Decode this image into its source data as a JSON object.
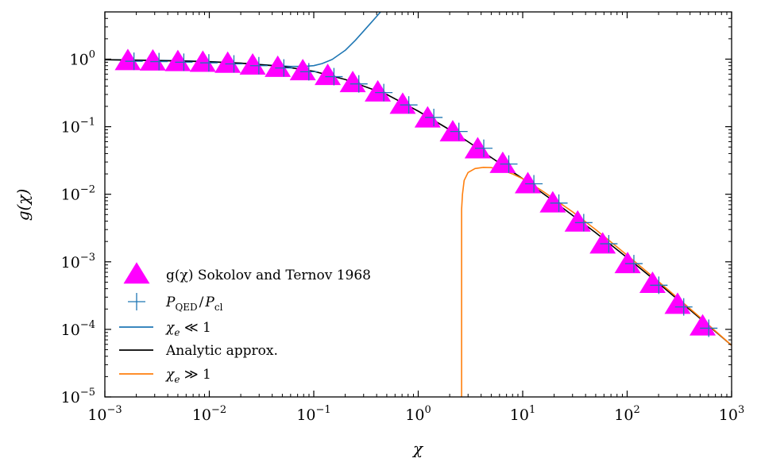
{
  "chart_data": {
    "type": "line",
    "xlabel": "χ",
    "ylabel": "g(χ)",
    "xscale": "log",
    "yscale": "log",
    "xlim": [
      0.001,
      1000
    ],
    "ylim": [
      1e-05,
      5
    ],
    "x_ticks": [
      {
        "base": "10",
        "exp": "−3",
        "value": 0.001
      },
      {
        "base": "10",
        "exp": "−2",
        "value": 0.01
      },
      {
        "base": "10",
        "exp": "−1",
        "value": 0.1
      },
      {
        "base": "10",
        "exp": "0",
        "value": 1
      },
      {
        "base": "10",
        "exp": "1",
        "value": 10
      },
      {
        "base": "10",
        "exp": "2",
        "value": 100
      },
      {
        "base": "10",
        "exp": "3",
        "value": 1000
      }
    ],
    "y_ticks": [
      {
        "base": "10",
        "exp": "−5",
        "value": 1e-05
      },
      {
        "base": "10",
        "exp": "−4",
        "value": 0.0001
      },
      {
        "base": "10",
        "exp": "−3",
        "value": 0.001
      },
      {
        "base": "10",
        "exp": "−2",
        "value": 0.01
      },
      {
        "base": "10",
        "exp": "−1",
        "value": 0.1
      },
      {
        "base": "10",
        "exp": "0",
        "value": 1
      }
    ],
    "legend_position": "bottom-left",
    "series": [
      {
        "name": "g(χ) Sokolov and Ternov 1968",
        "kind": "marker-triangle",
        "color": "#ff00ff",
        "x": [
          0.00166,
          0.00288,
          0.005,
          0.00867,
          0.015,
          0.026,
          0.0452,
          0.0785,
          0.136,
          0.236,
          0.41,
          0.71,
          1.23,
          2.14,
          3.71,
          6.44,
          11.2,
          19.4,
          33.6,
          58.3,
          101,
          175,
          304,
          528
        ],
        "y": [
          0.93,
          0.92,
          0.9,
          0.88,
          0.85,
          0.8,
          0.74,
          0.66,
          0.56,
          0.44,
          0.32,
          0.21,
          0.132,
          0.082,
          0.046,
          0.028,
          0.014,
          0.0073,
          0.0038,
          0.0018,
          0.00092,
          0.00047,
          0.00023,
          0.00011
        ]
      },
      {
        "name": "P_QED / P_cl",
        "kind": "marker-plus",
        "color": "#1f77b4",
        "x": [
          0.0019,
          0.0033,
          0.0057,
          0.0099,
          0.0172,
          0.0298,
          0.0517,
          0.0897,
          0.156,
          0.27,
          0.468,
          0.812,
          1.41,
          2.45,
          4.24,
          7.36,
          12.8,
          22.2,
          38.4,
          66.7,
          116,
          201,
          348,
          604
        ],
        "y": [
          0.93,
          0.92,
          0.9,
          0.88,
          0.85,
          0.8,
          0.74,
          0.65,
          0.55,
          0.43,
          0.32,
          0.21,
          0.137,
          0.085,
          0.048,
          0.028,
          0.0143,
          0.0074,
          0.0038,
          0.00185,
          0.00094,
          0.00045,
          0.000215,
          0.000104
        ]
      },
      {
        "name": "χe ≪ 1",
        "kind": "line",
        "color": "#1f77b4",
        "x": [
          0.001,
          0.005,
          0.01,
          0.02,
          0.04,
          0.06,
          0.08,
          0.1,
          0.12,
          0.15,
          0.2,
          0.25,
          0.3,
          0.35,
          0.4,
          0.45
        ],
        "y": [
          0.98,
          0.95,
          0.92,
          0.87,
          0.81,
          0.78,
          0.78,
          0.8,
          0.86,
          0.99,
          1.35,
          1.9,
          2.6,
          3.4,
          4.3,
          5.3
        ]
      },
      {
        "name": "Analytic approx.",
        "kind": "line",
        "color": "#000000",
        "x": [
          0.001,
          0.002,
          0.005,
          0.01,
          0.02,
          0.05,
          0.1,
          0.2,
          0.5,
          1,
          2,
          3,
          5,
          10,
          20,
          50,
          100,
          200,
          500,
          1000
        ],
        "y": [
          0.98,
          0.965,
          0.94,
          0.915,
          0.87,
          0.78,
          0.66,
          0.5,
          0.3,
          0.17,
          0.09,
          0.06,
          0.035,
          0.017,
          0.0078,
          0.0027,
          0.00115,
          0.00048,
          0.000145,
          5.8e-05
        ]
      },
      {
        "name": "χe ≫ 1",
        "kind": "line",
        "color": "#ff7f0e",
        "x": [
          2.6,
          2.6,
          2.65,
          2.75,
          3.0,
          3.5,
          4.2,
          5.0,
          6.0,
          8.0,
          10,
          15,
          20,
          30,
          50,
          100,
          200,
          500,
          1000
        ],
        "y": [
          1e-05,
          0.006,
          0.01,
          0.016,
          0.021,
          0.024,
          0.025,
          0.0248,
          0.0235,
          0.02,
          0.017,
          0.0115,
          0.0085,
          0.0055,
          0.003,
          0.00125,
          0.00051,
          0.00015,
          5.8e-05
        ]
      }
    ],
    "legend": [
      {
        "label": "g(χ) Sokolov and Ternov 1968",
        "kind": "marker-triangle",
        "color": "#ff00ff"
      },
      {
        "label": "P",
        "sub": "QED",
        "mid": "/",
        "label2": "P",
        "sub2": "cl",
        "kind": "marker-plus",
        "color": "#1f77b4"
      },
      {
        "label": "χ",
        "sub": "e",
        "tail": " ≪ 1",
        "kind": "line",
        "color": "#1f77b4"
      },
      {
        "label": "Analytic approx.",
        "kind": "line",
        "color": "#000000"
      },
      {
        "label": "χ",
        "sub": "e",
        "tail": " ≫ 1",
        "kind": "line",
        "color": "#ff7f0e"
      }
    ]
  }
}
